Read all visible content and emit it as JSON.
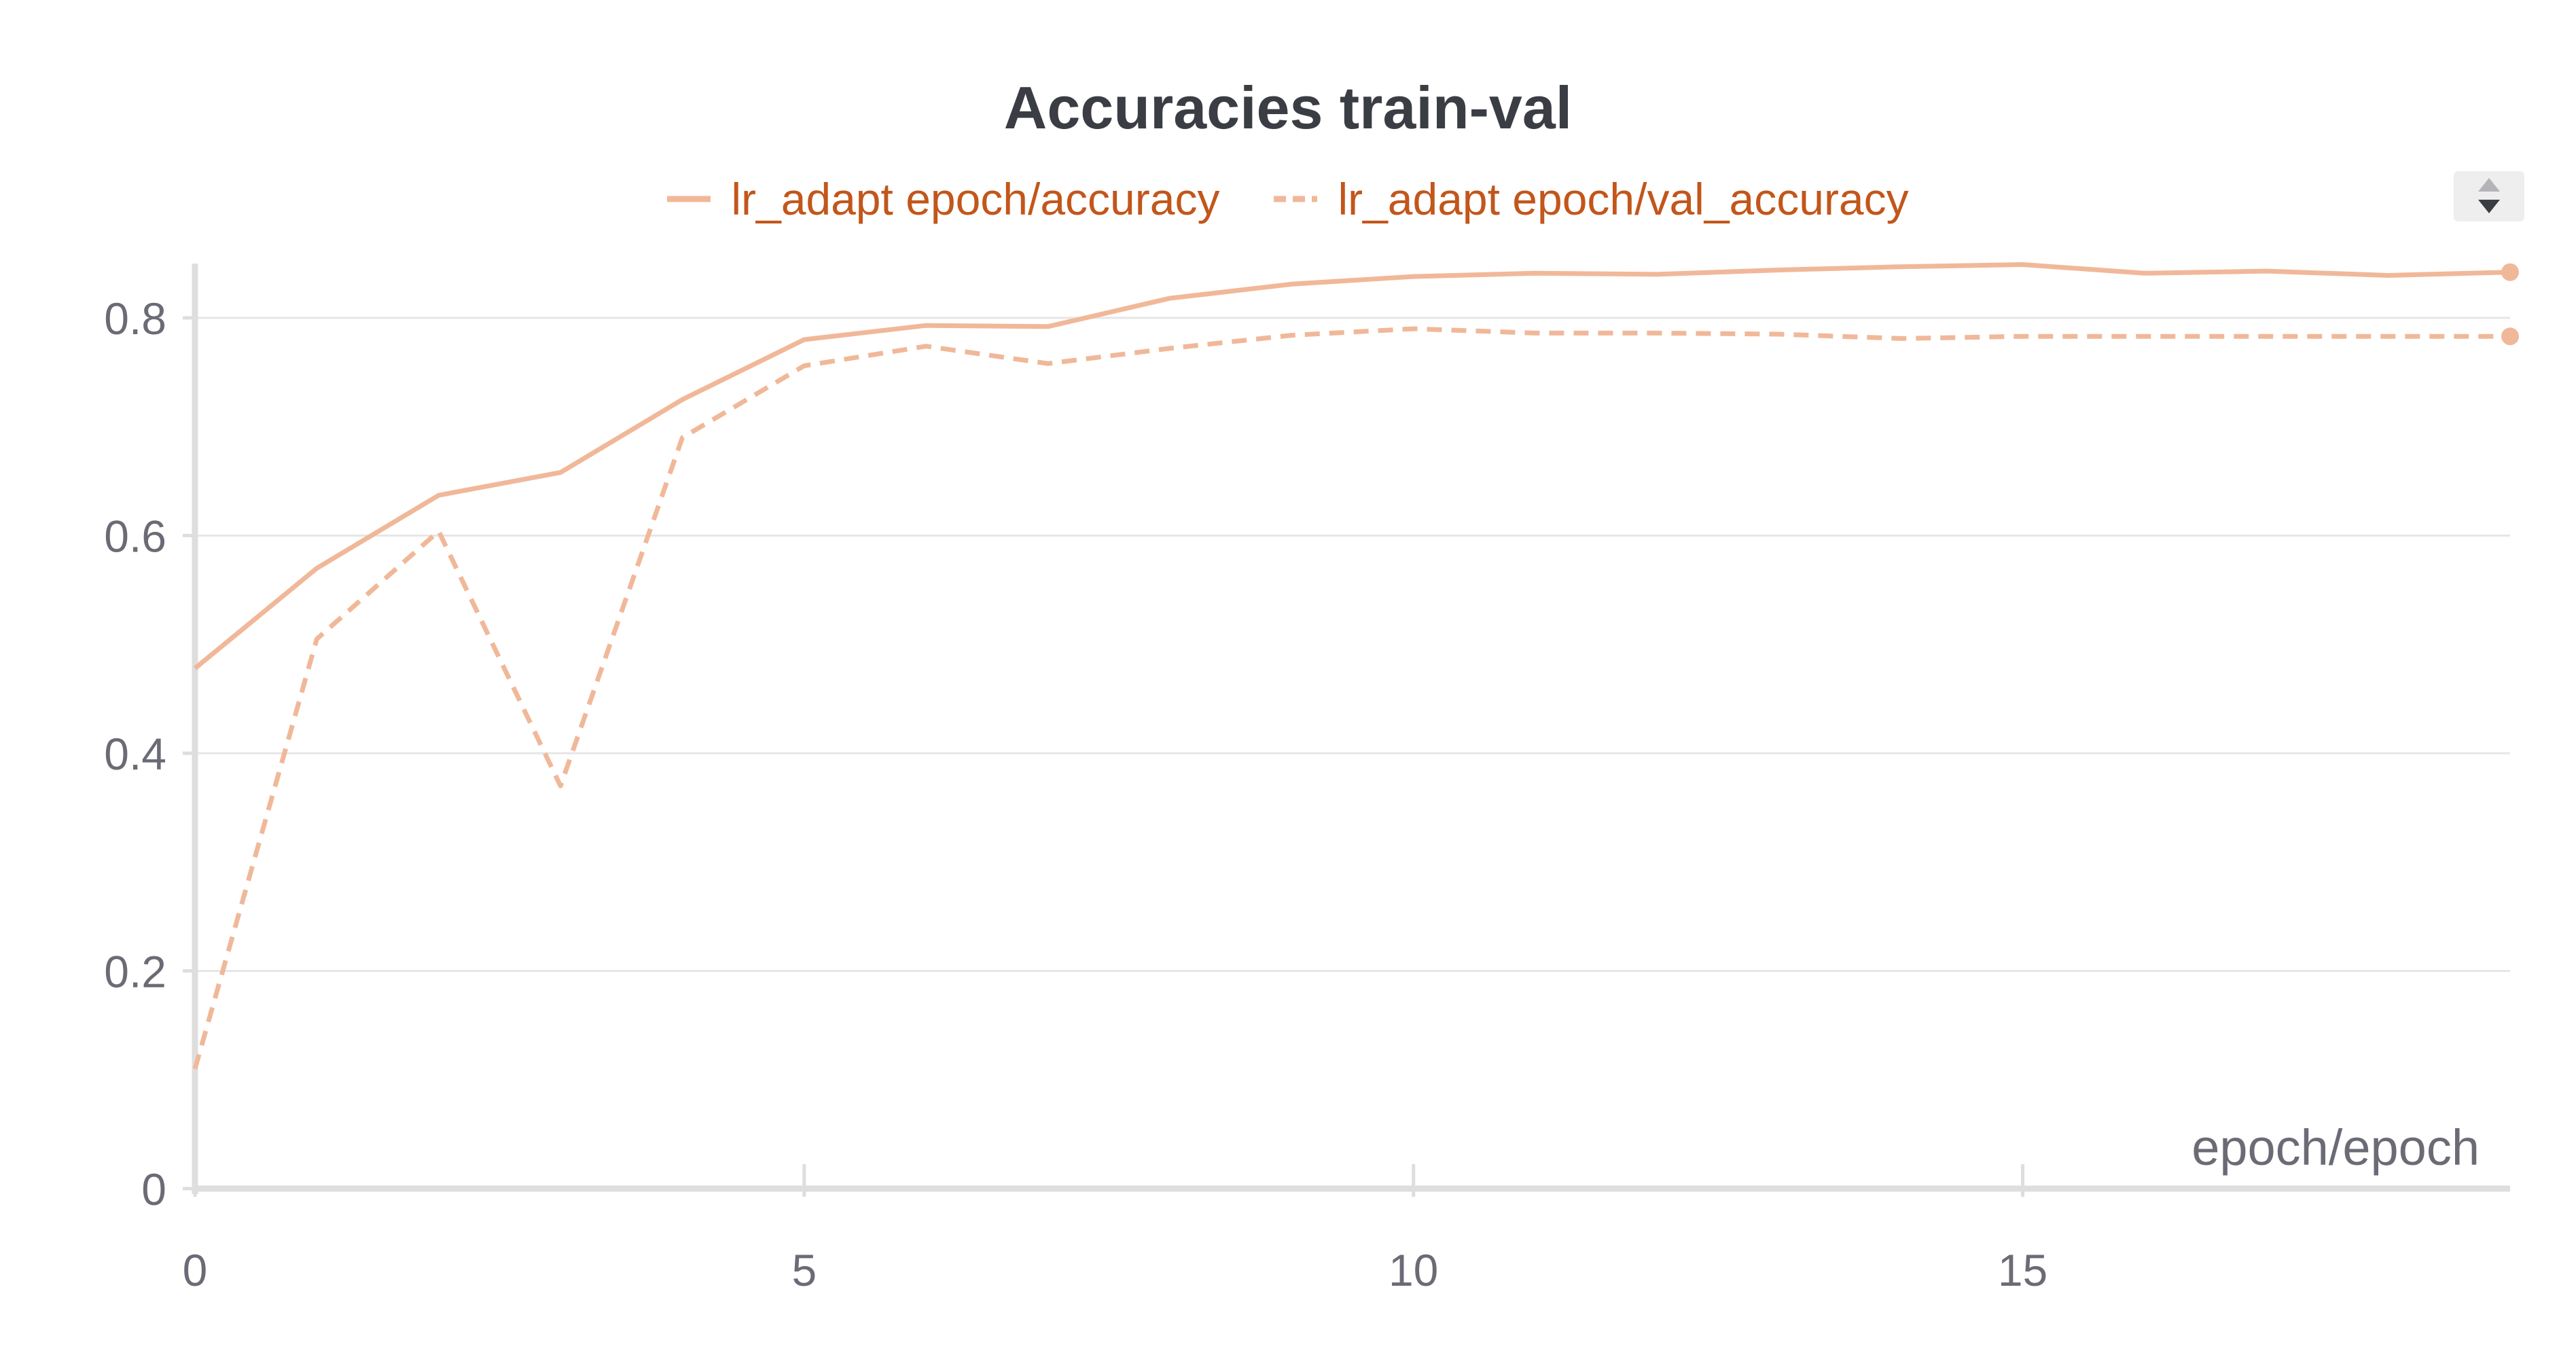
{
  "chart_data": {
    "type": "line",
    "title": "Accuracies train-val",
    "xlabel": "epoch/epoch",
    "ylabel": "",
    "xlim": [
      0,
      19
    ],
    "ylim": [
      0,
      0.85
    ],
    "x_ticks": [
      0,
      5,
      10,
      15
    ],
    "y_ticks": [
      0,
      0.2,
      0.4,
      0.6,
      0.8
    ],
    "x_tick_labels": [
      "0",
      "5",
      "10",
      "15"
    ],
    "y_tick_labels": [
      "0",
      "0.2",
      "0.4",
      "0.6",
      "0.8"
    ],
    "grid": true,
    "legend_position": "top-center",
    "x": [
      0,
      1,
      2,
      3,
      4,
      5,
      6,
      7,
      8,
      9,
      10,
      11,
      12,
      13,
      14,
      15,
      16,
      17,
      18,
      19
    ],
    "series": [
      {
        "name": "lr_adapt epoch/accuracy",
        "style": "solid",
        "color": "#f0b899",
        "values": [
          0.478,
          0.57,
          0.637,
          0.658,
          0.725,
          0.78,
          0.793,
          0.792,
          0.818,
          0.831,
          0.838,
          0.841,
          0.84,
          0.844,
          0.847,
          0.849,
          0.841,
          0.843,
          0.839,
          0.842
        ]
      },
      {
        "name": "lr_adapt epoch/val_accuracy",
        "style": "dashed",
        "color": "#f0b899",
        "values": [
          0.11,
          0.505,
          0.604,
          0.37,
          0.69,
          0.756,
          0.774,
          0.758,
          0.772,
          0.784,
          0.79,
          0.786,
          0.786,
          0.785,
          0.781,
          0.783,
          0.783,
          0.783,
          0.783,
          0.783
        ]
      }
    ]
  },
  "colors": {
    "series_line": "#f0b899",
    "legend_text": "#c2561b",
    "title_text": "#3b3d44",
    "tick_text": "#6b6b76",
    "grid": "#e6e6e6",
    "axis": "#dedede"
  },
  "ui": {
    "legend_scroll_icon": "up-down-arrows-icon"
  }
}
